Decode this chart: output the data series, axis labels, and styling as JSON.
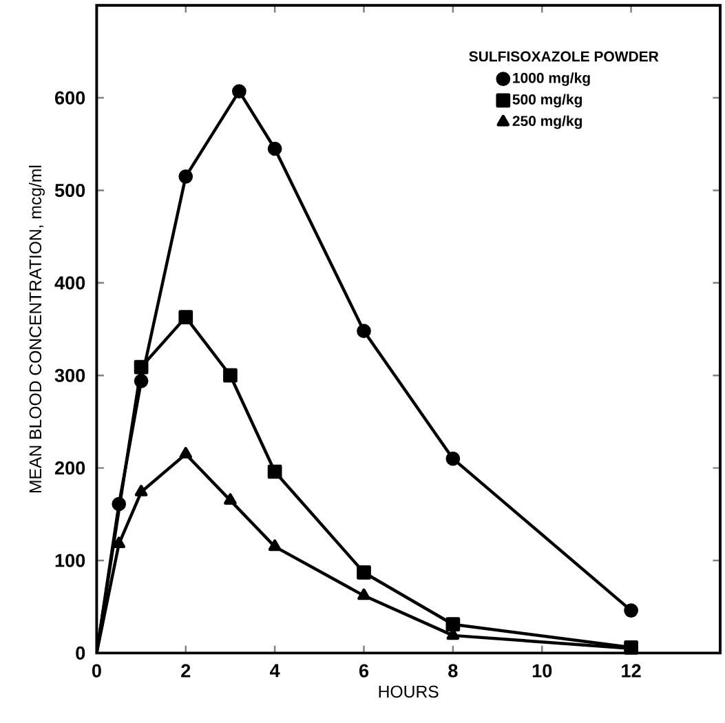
{
  "chart_data": {
    "type": "line",
    "xlabel": "HOURS",
    "ylabel": "MEAN BLOOD CONCENTRATION, mcg/ml",
    "legend_title": "SULFISOXAZOLE POWDER",
    "legend": "top right",
    "grid": false,
    "xlim": [
      0,
      14
    ],
    "ylim": [
      0,
      700
    ],
    "xticks": [
      0,
      2,
      4,
      6,
      8,
      10,
      12
    ],
    "yticks": [
      0,
      100,
      200,
      300,
      400,
      500,
      600
    ],
    "series": [
      {
        "name": "1000 mg/kg",
        "color": "#000000",
        "marker": "circle",
        "x": [
          0,
          0.5,
          1,
          2,
          3.2,
          4,
          6,
          8,
          12
        ],
        "values": [
          0,
          161,
          294,
          515,
          607,
          545,
          348,
          210,
          46
        ]
      },
      {
        "name": "500 mg/kg",
        "color": "#000000",
        "marker": "square",
        "x": [
          0,
          1,
          2,
          3,
          4,
          6,
          8,
          12
        ],
        "values": [
          0,
          309,
          363,
          300,
          196,
          87,
          31,
          6
        ]
      },
      {
        "name": "250 mg/kg",
        "color": "#000000",
        "marker": "triangle",
        "x": [
          0,
          0.5,
          1,
          2,
          3,
          4,
          6,
          8,
          12
        ],
        "values": [
          0,
          118,
          174,
          215,
          165,
          115,
          62,
          19,
          5
        ]
      }
    ]
  }
}
